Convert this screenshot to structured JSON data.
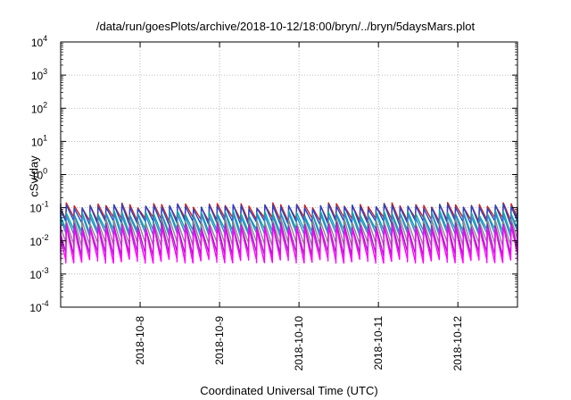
{
  "chart_data": {
    "type": "line",
    "title": "/data/run/goesPlots/archive/2018-10-12/18:00/bryn/../bryn/5daysMars.plot",
    "xlabel": "Coordinated Universal Time (UTC)",
    "ylabel": "cSv/day",
    "yscale": "log",
    "ylim": [
      0.0001,
      10000
    ],
    "y_ticks": [
      {
        "base": "10",
        "exp": "-4"
      },
      {
        "base": "10",
        "exp": "-3"
      },
      {
        "base": "10",
        "exp": "-2"
      },
      {
        "base": "10",
        "exp": "-1"
      },
      {
        "base": "10",
        "exp": "0"
      },
      {
        "base": "10",
        "exp": "1"
      },
      {
        "base": "10",
        "exp": "2"
      },
      {
        "base": "10",
        "exp": "3"
      },
      {
        "base": "10",
        "exp": "4"
      }
    ],
    "xlim": [
      "2018-10-07T00:00",
      "2018-10-12T18:00"
    ],
    "x_ticks": [
      "2018-10-8",
      "2018-10-9",
      "2018-10-10",
      "2018-10-11",
      "2018-10-12"
    ],
    "x_tick_dates": [
      "2018-10-08",
      "2018-10-09",
      "2018-10-10",
      "2018-10-11",
      "2018-10-12"
    ],
    "grid": true,
    "legend": "none",
    "note_on_values": "Sawtooth series, roughly 10 cycles per day; each cycle rises abruptly to its peak then decays. Peak and trough values below are per series.",
    "series": [
      {
        "color": "#cc2222",
        "peak": 0.12,
        "trough": 0.045
      },
      {
        "color": "#2244cc",
        "peak": 0.11,
        "trough": 0.035
      },
      {
        "color": "#00aaaa",
        "peak": 0.07,
        "trough": 0.02
      },
      {
        "color": "#3388cc",
        "peak": 0.06,
        "trough": 0.015
      },
      {
        "color": "#888888",
        "peak": 0.04,
        "trough": 0.008
      },
      {
        "color": "#9922bb",
        "peak": 0.03,
        "trough": 0.004
      },
      {
        "color": "#ff00ff",
        "peak": 0.025,
        "trough": 0.0025
      }
    ],
    "colors": {
      "axis": "#000000",
      "grid": "#aaaaaa",
      "background": "#ffffff"
    }
  }
}
